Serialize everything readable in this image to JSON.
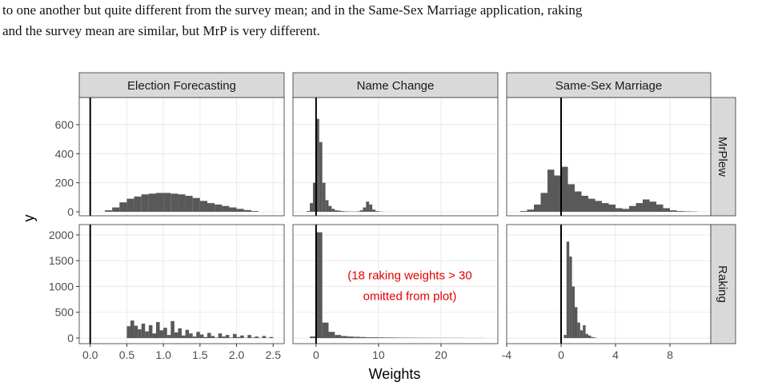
{
  "text": [
    "to one another but quite different from the survey mean; and in the Same-Sex Marriage application, raking",
    "and the survey mean are similar, but MrP is very different."
  ],
  "chart_data": {
    "type": "histogram",
    "x_label": "Weights",
    "y_label": "y",
    "color": "#595959",
    "reference_line_x": 0,
    "grid": true,
    "columns": [
      {
        "name": "Election Forecasting",
        "xlim": [
          -0.15,
          2.65
        ],
        "xticks": [
          {
            "value": 0,
            "label": "0.0"
          },
          {
            "value": 0.5,
            "label": "0.5"
          },
          {
            "value": 1,
            "label": "1.0"
          },
          {
            "value": 1.5,
            "label": "1.5"
          },
          {
            "value": 2,
            "label": "2.0"
          },
          {
            "value": 2.5,
            "label": "2.5"
          }
        ]
      },
      {
        "name": "Name Change",
        "xlim": [
          -3.7,
          29.1
        ],
        "xticks": [
          0,
          10,
          20
        ]
      },
      {
        "name": "Same-Sex Marriage",
        "xlim": [
          -4,
          11
        ],
        "xticks": [
          -4,
          0,
          4,
          8
        ]
      }
    ],
    "rows": [
      {
        "name": "MrPlew",
        "ylim": [
          -27.5,
          787
        ],
        "yticks": [
          0,
          200,
          400,
          600
        ]
      },
      {
        "name": "Raking",
        "ylim": [
          -108,
          2200
        ],
        "yticks": [
          0,
          500,
          1000,
          1500,
          2000
        ]
      }
    ],
    "panels": [
      [
        {
          "bins": [
            0.2,
            0.3,
            0.4,
            0.5,
            0.6,
            0.7,
            0.8,
            0.9,
            1.0,
            1.1,
            1.2,
            1.3,
            1.4,
            1.5,
            1.6,
            1.7,
            1.8,
            1.9,
            2.0,
            2.1,
            2.2,
            2.3
          ],
          "counts": [
            10,
            30,
            65,
            90,
            105,
            120,
            125,
            130,
            130,
            125,
            120,
            110,
            95,
            75,
            60,
            50,
            40,
            30,
            20,
            12,
            5
          ]
        },
        {
          "bins": [
            -1.5,
            -1,
            -0.5,
            0,
            0.5,
            1,
            1.5,
            2,
            2.5,
            3,
            3.5,
            4,
            4.5,
            5,
            5.5,
            6,
            6.5,
            7,
            7.5,
            8,
            8.5,
            9,
            9.5,
            10,
            10.5,
            11
          ],
          "counts": [
            5,
            60,
            200,
            640,
            480,
            200,
            80,
            40,
            20,
            10,
            8,
            5,
            3,
            2,
            2,
            2,
            3,
            10,
            30,
            70,
            50,
            15,
            5,
            2,
            1
          ]
        },
        {
          "bins": [
            -3,
            -2.5,
            -2,
            -1.5,
            -1,
            -0.5,
            0,
            0.5,
            1,
            1.5,
            2,
            2.5,
            3,
            3.5,
            4,
            4.5,
            5,
            5.5,
            6,
            6.5,
            7,
            7.5,
            8,
            8.5,
            9,
            9.5,
            10
          ],
          "counts": [
            5,
            15,
            50,
            130,
            290,
            250,
            310,
            190,
            140,
            110,
            90,
            75,
            60,
            50,
            25,
            20,
            40,
            60,
            85,
            70,
            50,
            25,
            10,
            5,
            3,
            2
          ]
        }
      ],
      [
        {
          "bins": [
            0.5,
            0.55,
            0.6,
            0.65,
            0.7,
            0.75,
            0.8,
            0.85,
            0.9,
            0.95,
            1.0,
            1.05,
            1.1,
            1.15,
            1.2,
            1.25,
            1.3,
            1.35,
            1.4,
            1.45,
            1.5,
            1.55,
            1.6,
            1.65,
            1.7,
            1.75,
            1.8,
            1.85,
            1.9,
            1.95,
            2.0,
            2.05,
            2.1,
            2.15,
            2.2,
            2.25,
            2.3,
            2.35,
            2.4,
            2.45,
            2.5
          ],
          "counts": [
            230,
            340,
            240,
            170,
            280,
            130,
            250,
            90,
            310,
            150,
            200,
            60,
            330,
            110,
            190,
            50,
            160,
            90,
            30,
            120,
            70,
            20,
            100,
            40,
            10,
            90,
            30,
            60,
            10,
            80,
            20,
            50,
            5,
            60,
            10,
            30,
            5,
            40,
            5,
            20
          ]
        },
        {
          "bins": [
            -1,
            0,
            1,
            2,
            3,
            4,
            5,
            6,
            7,
            8,
            9,
            10,
            11,
            12,
            13,
            14,
            15,
            16,
            17,
            18,
            19,
            20,
            21,
            22,
            23,
            24,
            25,
            26,
            27
          ],
          "counts": [
            30,
            2050,
            300,
            120,
            60,
            40,
            30,
            25,
            20,
            15,
            15,
            12,
            10,
            10,
            8,
            8,
            6,
            6,
            5,
            5,
            4,
            4,
            3,
            3,
            3,
            2,
            2,
            2
          ],
          "annotation": [
            "(18 raking weights > 30",
            "omitted from plot)"
          ]
        },
        {
          "bins": [
            0.2,
            0.4,
            0.6,
            0.8,
            1.0,
            1.2,
            1.4,
            1.6,
            1.8,
            2.0,
            2.2,
            2.4,
            2.6
          ],
          "counts": [
            60,
            1870,
            1580,
            1000,
            600,
            300,
            150,
            250,
            80,
            50,
            20,
            10
          ]
        }
      ]
    ]
  }
}
